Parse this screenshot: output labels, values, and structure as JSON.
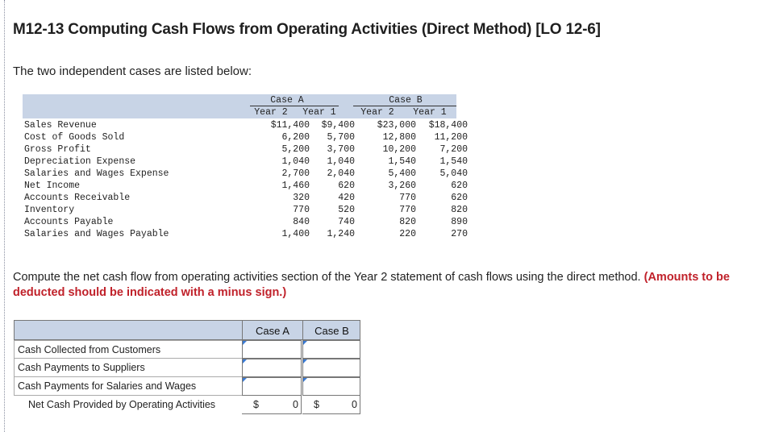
{
  "title": "M12-13 Computing Cash Flows from Operating Activities (Direct Method) [LO 12-6]",
  "intro": "The two independent cases are listed below:",
  "data_table": {
    "case_a": "Case A",
    "case_b": "Case B",
    "year2": "Year 2",
    "year1": "Year 1",
    "rows": [
      {
        "label": "Sales Revenue",
        "a2": "$11,400",
        "a1": "$9,400",
        "b2": "$23,000",
        "b1": "$18,400"
      },
      {
        "label": "Cost of Goods Sold",
        "a2": "6,200",
        "a1": "5,700",
        "b2": "12,800",
        "b1": "11,200"
      },
      {
        "label": "Gross Profit",
        "a2": "5,200",
        "a1": "3,700",
        "b2": "10,200",
        "b1": "7,200"
      },
      {
        "label": "Depreciation Expense",
        "a2": "1,040",
        "a1": "1,040",
        "b2": "1,540",
        "b1": "1,540"
      },
      {
        "label": "Salaries and Wages Expense",
        "a2": "2,700",
        "a1": "2,040",
        "b2": "5,400",
        "b1": "5,040"
      },
      {
        "label": "Net Income",
        "a2": "1,460",
        "a1": "620",
        "b2": "3,260",
        "b1": "620"
      },
      {
        "label": "Accounts Receivable",
        "a2": "320",
        "a1": "420",
        "b2": "770",
        "b1": "620"
      },
      {
        "label": "Inventory",
        "a2": "770",
        "a1": "520",
        "b2": "770",
        "b1": "820"
      },
      {
        "label": "Accounts Payable",
        "a2": "840",
        "a1": "740",
        "b2": "820",
        "b1": "890"
      },
      {
        "label": "Salaries and Wages Payable",
        "a2": "1,400",
        "a1": "1,240",
        "b2": "220",
        "b1": "270"
      }
    ]
  },
  "question": {
    "text": "Compute the net cash flow from operating activities section of the Year 2 statement of cash flows using the direct method.",
    "emphasis": "(Amounts to be deducted should be indicated with a minus sign.)"
  },
  "answer_table": {
    "col_a": "Case A",
    "col_b": "Case B",
    "rows": [
      {
        "label": "Cash Collected from Customers",
        "a": "",
        "b": ""
      },
      {
        "label": "Cash Payments to Suppliers",
        "a": "",
        "b": ""
      },
      {
        "label": "Cash Payments for Salaries and Wages",
        "a": "",
        "b": ""
      }
    ],
    "total": {
      "label": "Net Cash Provided by Operating Activities",
      "currency": "$",
      "a": "0",
      "b": "0"
    }
  }
}
